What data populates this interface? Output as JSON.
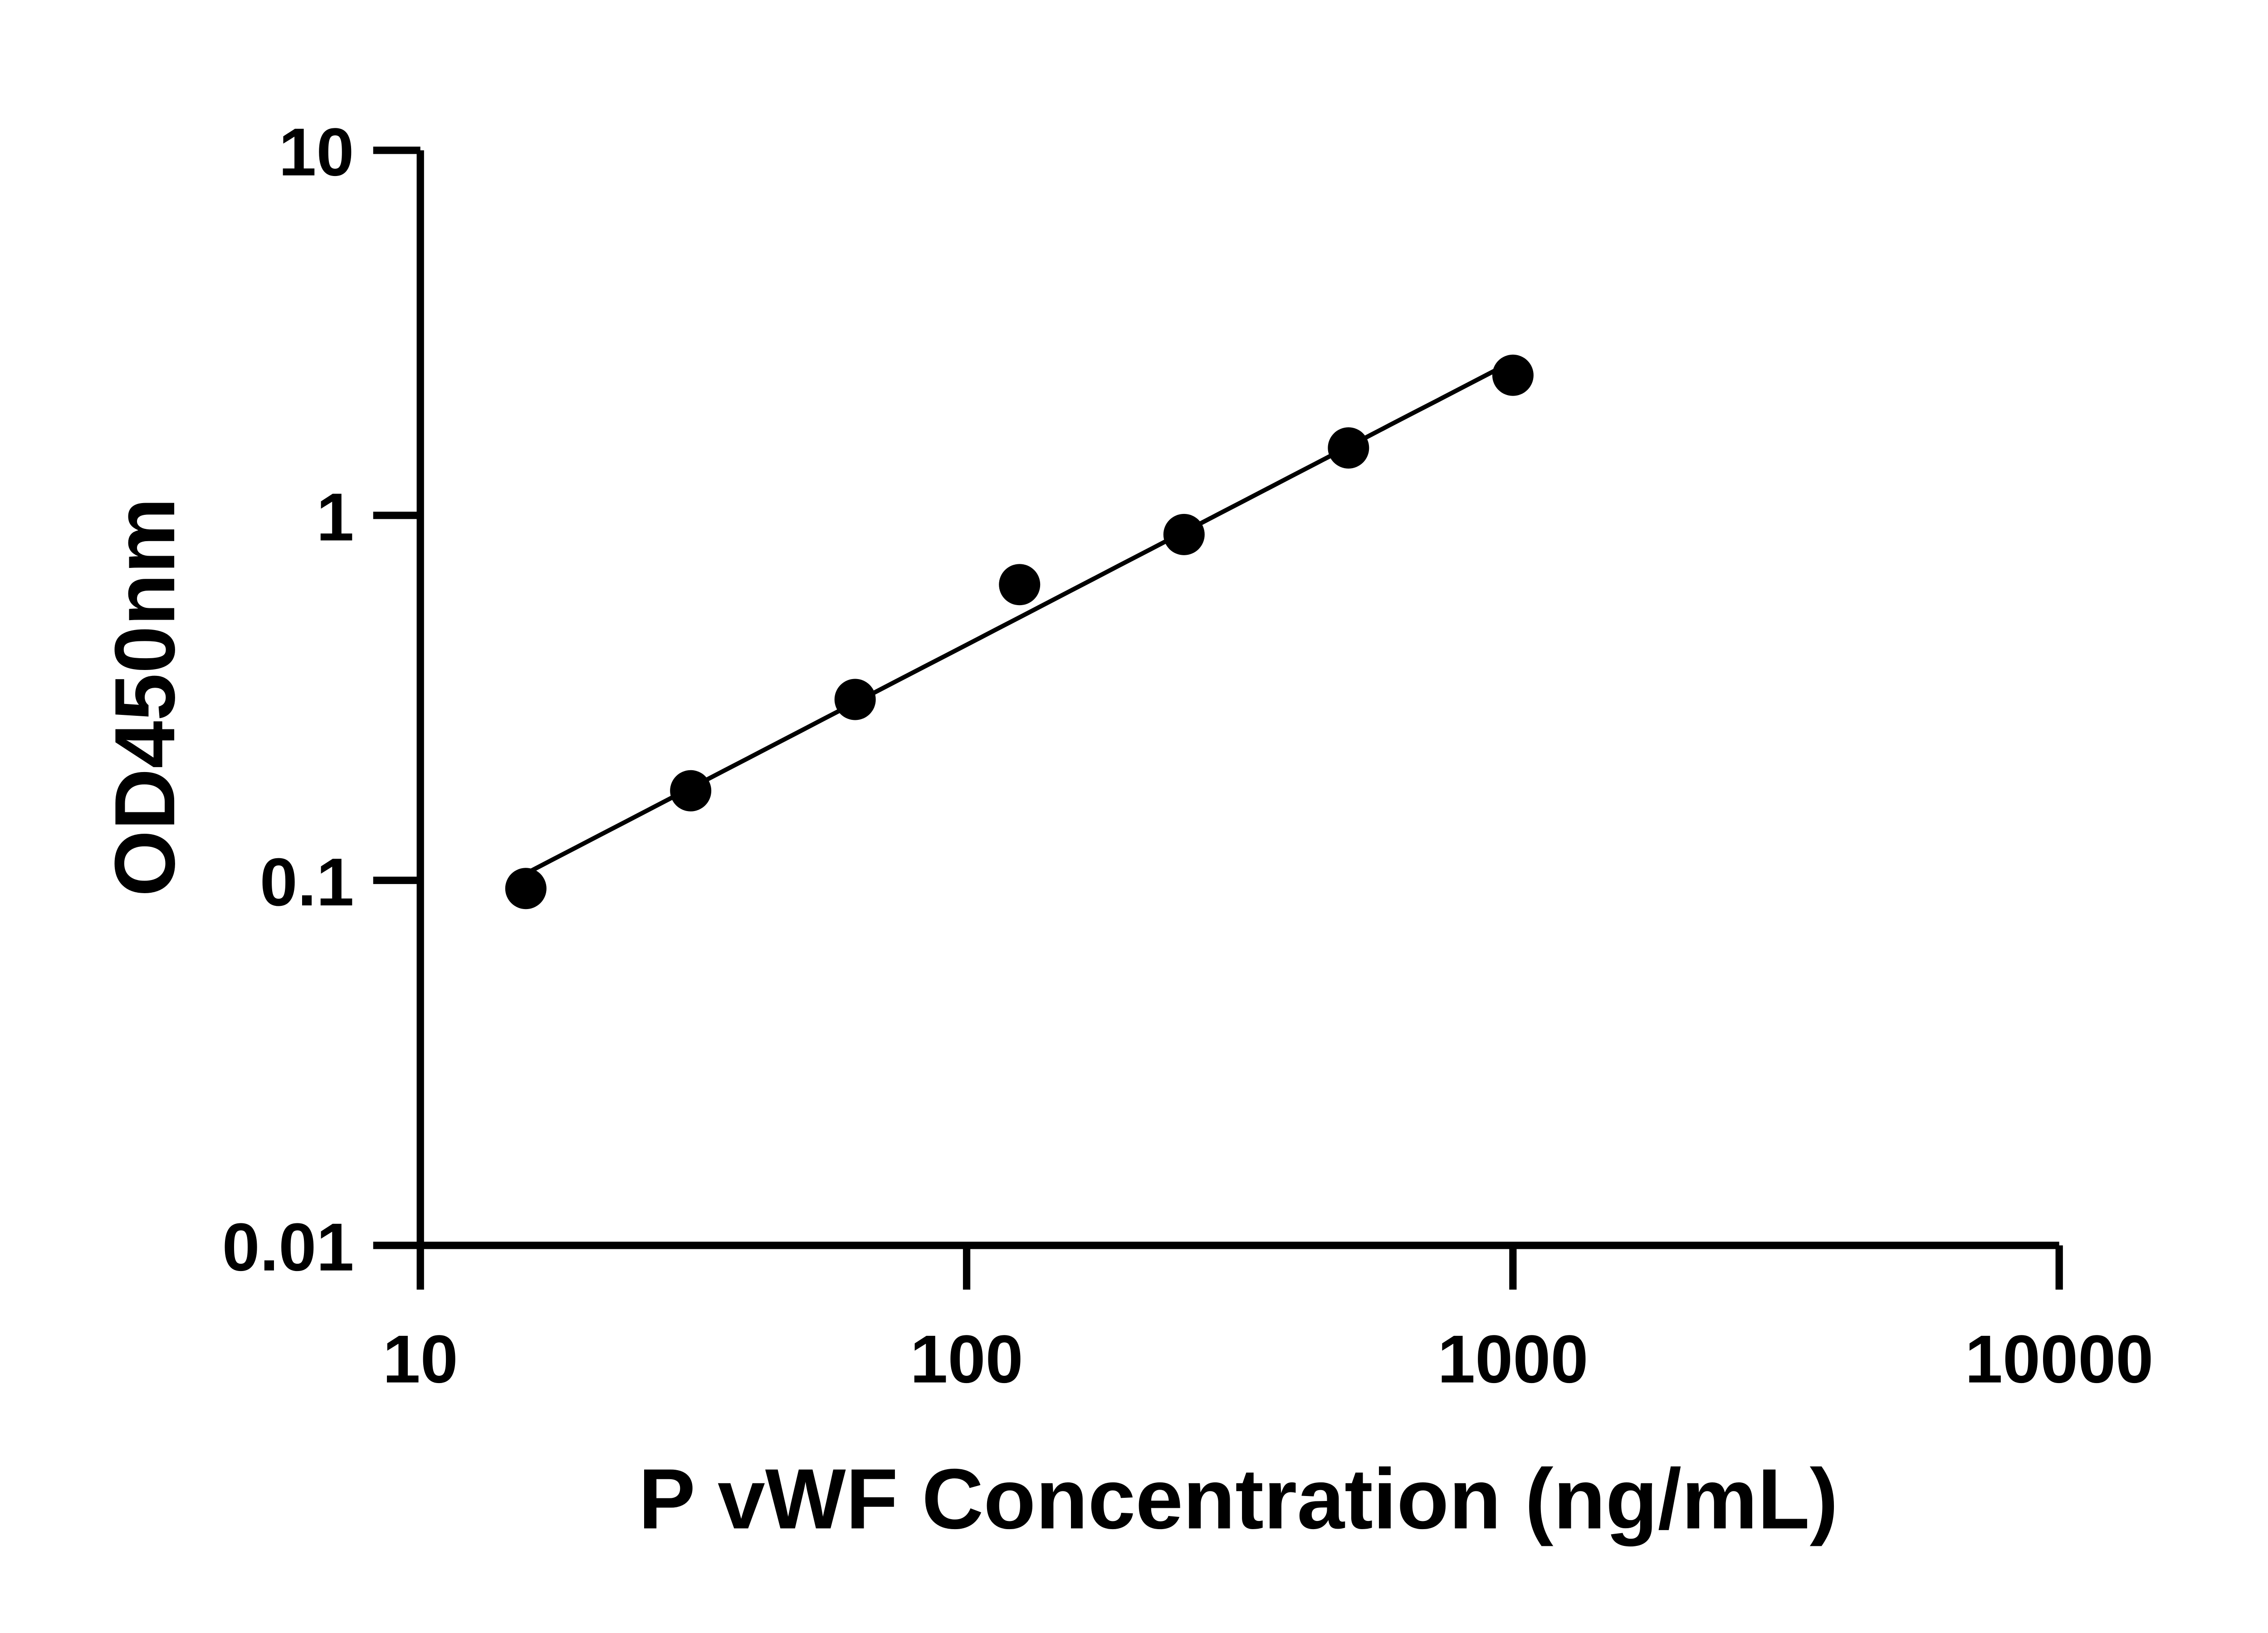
{
  "chart_data": {
    "type": "scatter",
    "xlabel": "P vWF Concentration (ng/mL)",
    "ylabel": "OD450nm",
    "xscale": "log",
    "yscale": "log",
    "xlim": [
      10,
      10000
    ],
    "ylim": [
      0.01,
      10
    ],
    "xticks": [
      "10",
      "100",
      "1000",
      "10000"
    ],
    "yticks": [
      "0.01",
      "0.1",
      "1",
      "10"
    ],
    "grid": false,
    "fit_line": true,
    "colors": {
      "points": "#000000",
      "line": "#000000",
      "axes": "#000000"
    },
    "points": [
      {
        "x": 15.6,
        "y": 0.095
      },
      {
        "x": 31.25,
        "y": 0.176
      },
      {
        "x": 62.5,
        "y": 0.313
      },
      {
        "x": 125,
        "y": 0.646
      },
      {
        "x": 250,
        "y": 0.886
      },
      {
        "x": 500,
        "y": 1.53
      },
      {
        "x": 1000,
        "y": 2.42
      }
    ]
  }
}
